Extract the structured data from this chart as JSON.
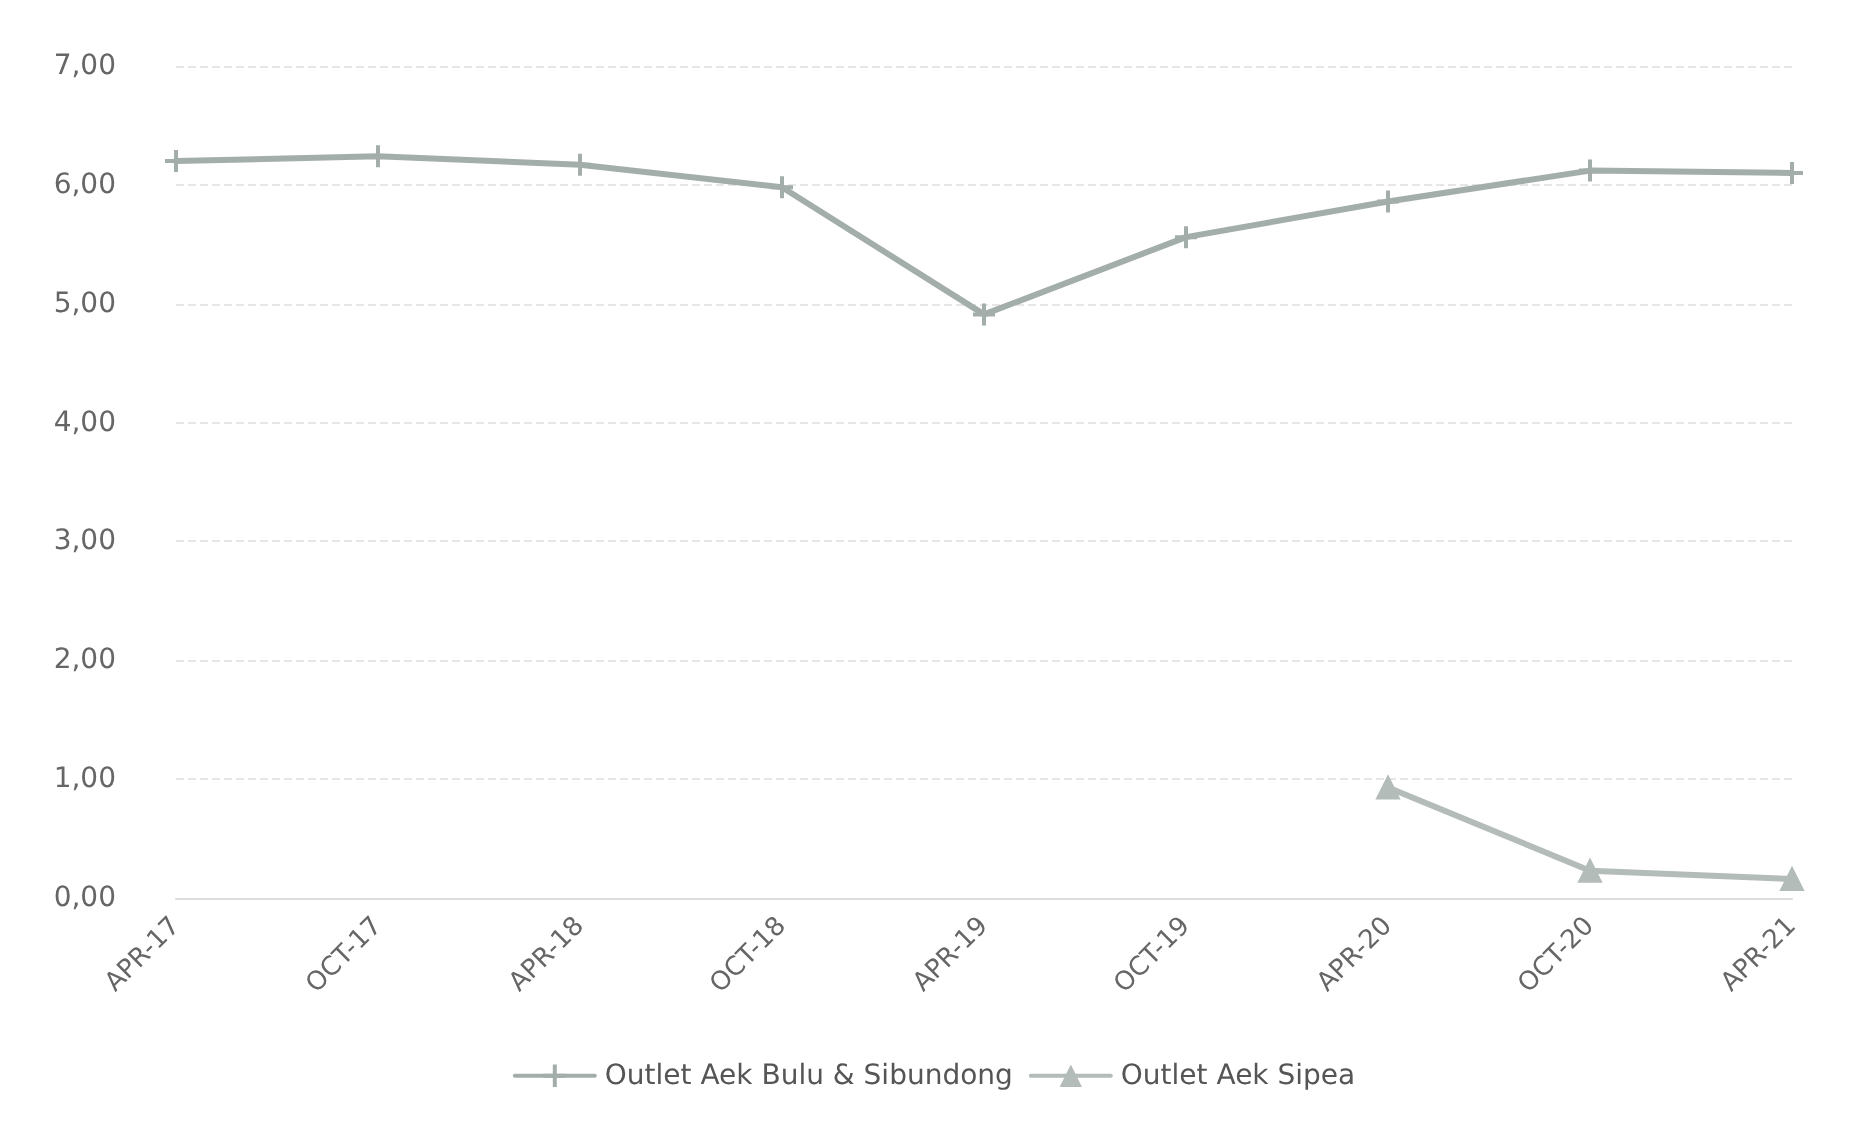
{
  "chart_data": {
    "type": "line",
    "categories": [
      "APR-17",
      "OCT-17",
      "APR-18",
      "OCT-18",
      "APR-19",
      "OCT-19",
      "APR-20",
      "OCT-20",
      "APR-21"
    ],
    "series": [
      {
        "name": "Outlet Aek Bulu & Sibundong",
        "color": "#a3aeab",
        "marker": "cross",
        "values": [
          6.2,
          6.24,
          6.17,
          5.98,
          4.91,
          5.56,
          5.86,
          6.12,
          6.1
        ]
      },
      {
        "name": "Outlet Aek Sipea",
        "color": "#b3bcb9",
        "marker": "triangle",
        "values": [
          null,
          null,
          null,
          null,
          null,
          null,
          0.93,
          0.23,
          0.16
        ]
      }
    ],
    "ylim": [
      0,
      7
    ],
    "yticks": [
      {
        "value": 0,
        "label": "0,00"
      },
      {
        "value": 1,
        "label": "1,00"
      },
      {
        "value": 2,
        "label": "2,00"
      },
      {
        "value": 3,
        "label": "3,00"
      },
      {
        "value": 4,
        "label": "4,00"
      },
      {
        "value": 5,
        "label": "5,00"
      },
      {
        "value": 6,
        "label": "6,00"
      },
      {
        "value": 7,
        "label": "7,00"
      }
    ],
    "grid": "y",
    "legend": "bottom"
  }
}
